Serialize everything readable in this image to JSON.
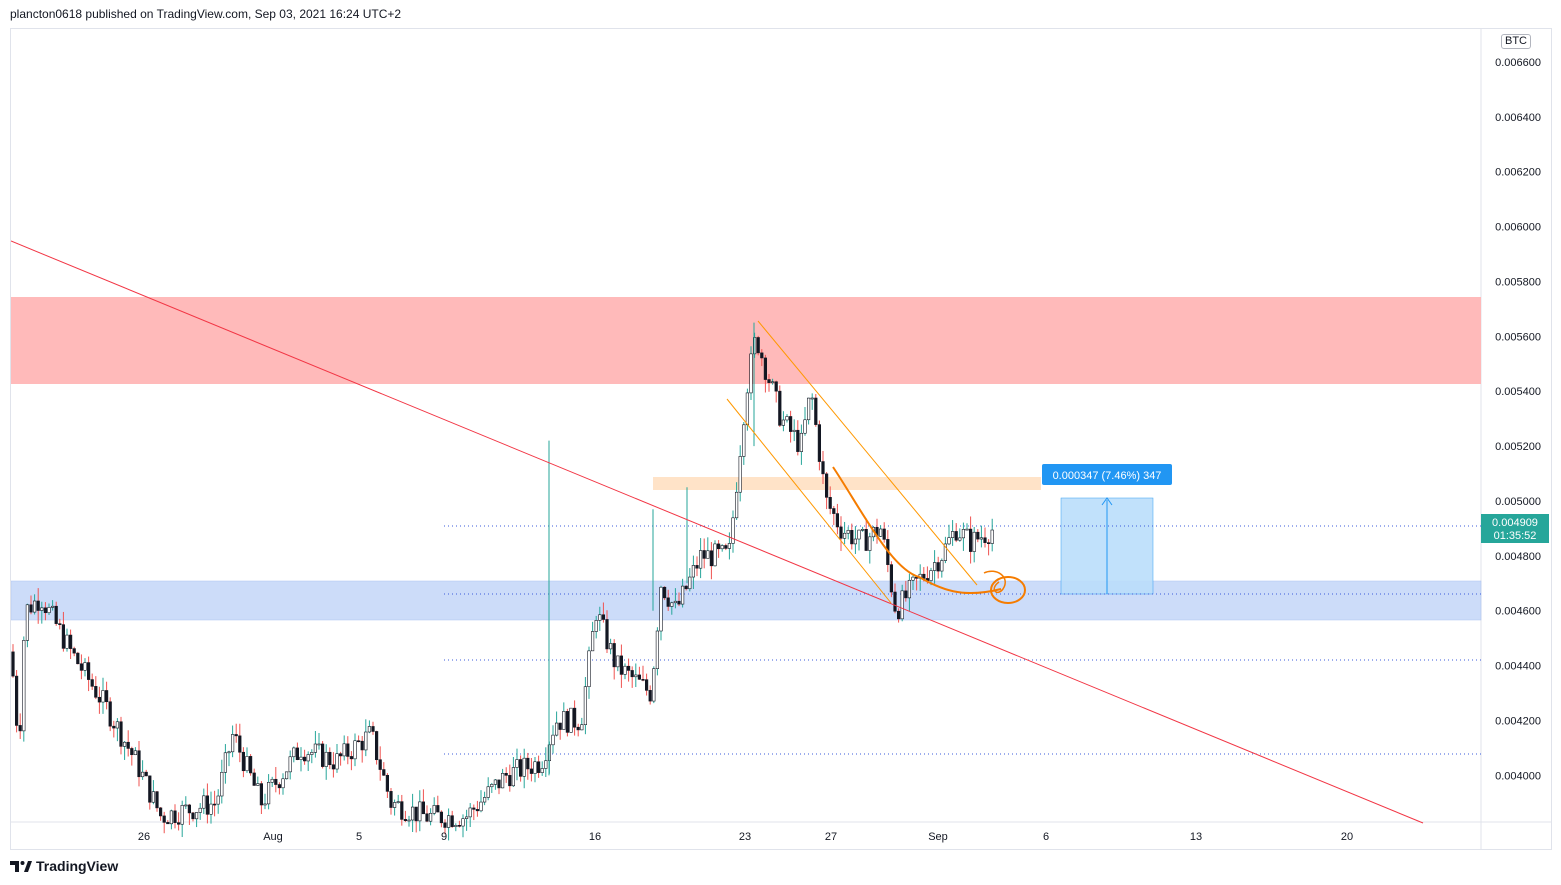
{
  "header": {
    "text": "plancton0618 published on TradingView.com, Sep 03, 2021 16:24 UTC+2"
  },
  "footer": {
    "brand": "TradingView",
    "logo_icon": "tradingview-logo-icon"
  },
  "currency_badge": "BTC",
  "price_label": {
    "price": "0.004909",
    "countdown": "01:35:52",
    "color": "#26a69a"
  },
  "measure_label": {
    "text": "0.000347 (7.46%) 347",
    "color": "#2962ff"
  },
  "colors": {
    "up": "#26a69a",
    "down": "#ef5350",
    "trendline": "#f23645",
    "channel": "#ff9800",
    "resistance_zone": "#ffb3b3",
    "support_zone": "#c4d6f8",
    "measure_box": "#bbdefb",
    "supply_band": "#ffe0c2"
  },
  "chart_data": {
    "type": "candlestick",
    "symbol_currency": "BTC",
    "ylim": [
      0.00383,
      0.00672
    ],
    "y_ticks": [
      "0.006600",
      "0.006400",
      "0.006200",
      "0.006000",
      "0.005800",
      "0.005600",
      "0.005400",
      "0.005200",
      "0.005000",
      "0.004800",
      "0.004600",
      "0.004400",
      "0.004200",
      "0.004000"
    ],
    "x_ticks": [
      "26",
      "Aug",
      "5",
      "9",
      "16",
      "23",
      "27",
      "Sep",
      "6",
      "13",
      "20"
    ],
    "zones": {
      "resistance": [
        0.00541,
        0.00572
      ],
      "support": [
        0.00455,
        0.00469
      ],
      "supply_band": [
        0.00503,
        0.00507
      ],
      "measure": {
        "low": 0.004646,
        "high": 0.004993
      }
    },
    "horizontal_levels": [
      0.004909,
      0.004646,
      0.004407,
      0.004072
    ],
    "trendline": {
      "start": 0.00592,
      "end": 0.003825
    },
    "series_description": "BTC-quoted hourly candles, late July to early September 2021"
  }
}
